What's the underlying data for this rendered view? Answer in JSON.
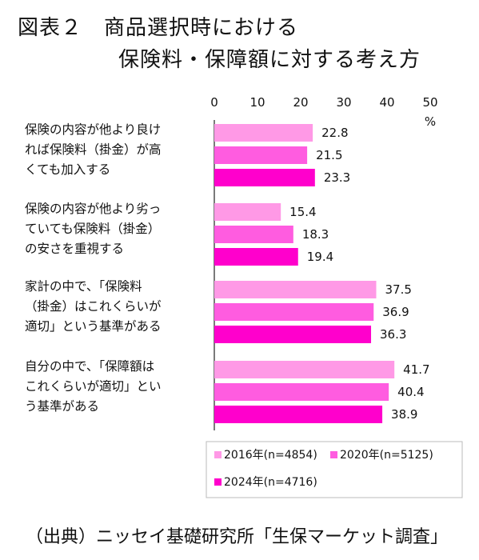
{
  "title": {
    "line1": "図表２　商品選択時における",
    "line2": "保険料・保障額に対する考え方"
  },
  "source": "（出典）ニッセイ基礎研究所「生保マーケット調査」",
  "chart_data": {
    "type": "bar",
    "orientation": "horizontal",
    "unit": "%",
    "xlim": [
      0,
      50
    ],
    "ticks": [
      0,
      10,
      20,
      30,
      40,
      50
    ],
    "categories": [
      [
        "保険の内容が他より良け",
        "れば保険料（掛金）が高",
        "くても加入する"
      ],
      [
        "保険の内容が他より劣っ",
        "ていても保険料（掛金）",
        "の安さを重視する"
      ],
      [
        "家計の中で、「保険料",
        "（掛金）はこれくらいが",
        "適切」という基準がある"
      ],
      [
        "自分の中で、「保障額は",
        "これくらいが適切」とい",
        "う基準がある"
      ]
    ],
    "series": [
      {
        "name": "2016年(n=4854)",
        "color": "#ff99e6",
        "values": [
          22.8,
          15.4,
          37.5,
          41.7
        ],
        "labels": [
          "22.8",
          "15.4",
          "37.5",
          "41.7"
        ]
      },
      {
        "name": "2020年(n=5125)",
        "color": "#ff5ce0",
        "values": [
          21.5,
          18.3,
          36.9,
          40.4
        ],
        "labels": [
          "21.5",
          "18.3",
          "36.9",
          "40.4"
        ]
      },
      {
        "name": "2024年(n=4716)",
        "color": "#ff00cc",
        "values": [
          23.3,
          19.4,
          36.3,
          38.9
        ],
        "labels": [
          "23.3",
          "19.4",
          "36.3",
          "38.9"
        ]
      }
    ],
    "legend": "bottom-right"
  }
}
